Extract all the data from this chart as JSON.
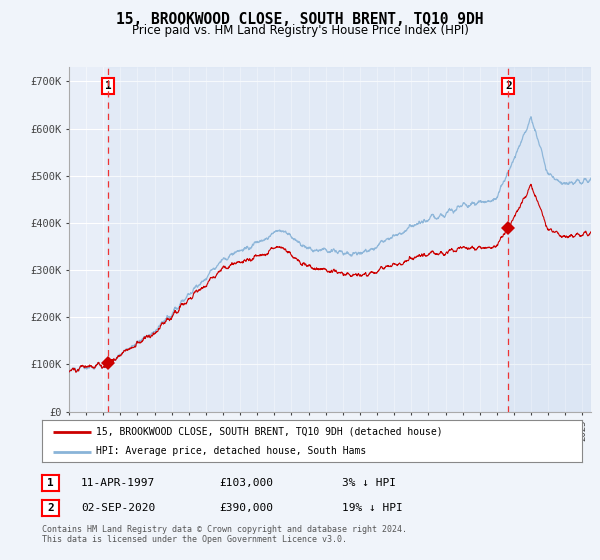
{
  "title": "15, BROOKWOOD CLOSE, SOUTH BRENT, TQ10 9DH",
  "subtitle": "Price paid vs. HM Land Registry's House Price Index (HPI)",
  "legend_line1": "15, BROOKWOOD CLOSE, SOUTH BRENT, TQ10 9DH (detached house)",
  "legend_line2": "HPI: Average price, detached house, South Hams",
  "annotation1_label": "1",
  "annotation1_date": "11-APR-1997",
  "annotation1_price": "£103,000",
  "annotation1_hpi": "3% ↓ HPI",
  "annotation1_year": 1997.28,
  "annotation1_value": 103000,
  "annotation2_label": "2",
  "annotation2_date": "02-SEP-2020",
  "annotation2_price": "£390,000",
  "annotation2_hpi": "19% ↓ HPI",
  "annotation2_year": 2020.67,
  "annotation2_value": 390000,
  "hpi_color": "#8ab4d8",
  "price_color": "#cc0000",
  "vline_color": "#ee3333",
  "background_color": "#f0f4fa",
  "plot_bg": "#e8eef8",
  "footer": "Contains HM Land Registry data © Crown copyright and database right 2024.\nThis data is licensed under the Open Government Licence v3.0.",
  "ylim": [
    0,
    730000
  ],
  "xlim_start": 1995,
  "xlim_end": 2025.5
}
